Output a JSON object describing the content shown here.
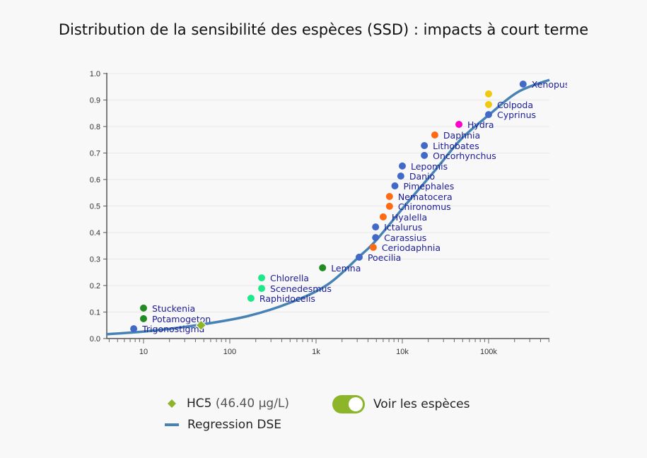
{
  "chart_data": {
    "type": "scatter",
    "title": "Distribution de la sensibilité des espèces (SSD) : impacts à court terme",
    "xscale": "log",
    "xlim": [
      3.75,
      507000
    ],
    "ylim": [
      0,
      1
    ],
    "xticks": [
      {
        "v": 10,
        "label": "10"
      },
      {
        "v": 100,
        "label": "100"
      },
      {
        "v": 1000,
        "label": "1k"
      },
      {
        "v": 10000,
        "label": "10k"
      },
      {
        "v": 100000,
        "label": "100k"
      }
    ],
    "yticks": [
      {
        "v": 0,
        "label": "0.0"
      },
      {
        "v": 0.1,
        "label": "0.1"
      },
      {
        "v": 0.2,
        "label": "0.2"
      },
      {
        "v": 0.3,
        "label": "0.3"
      },
      {
        "v": 0.4,
        "label": "0.4"
      },
      {
        "v": 0.5,
        "label": "0.5"
      },
      {
        "v": 0.6,
        "label": "0.6"
      },
      {
        "v": 0.7,
        "label": "0.7"
      },
      {
        "v": 0.8,
        "label": "0.8"
      },
      {
        "v": 0.9,
        "label": "0.9"
      },
      {
        "v": 1,
        "label": "1.0"
      }
    ],
    "grid": "horizontal",
    "points": [
      {
        "name": "Trigonostigma",
        "x": 7.7,
        "y": 0.037,
        "color": "#4169c8"
      },
      {
        "name": "Potamogeton",
        "x": 10,
        "y": 0.075,
        "color": "#228b22"
      },
      {
        "name": "Stuckenia",
        "x": 10,
        "y": 0.115,
        "color": "#228b22"
      },
      {
        "name": "Raphidocelis",
        "x": 176,
        "y": 0.152,
        "color": "#1de98b"
      },
      {
        "name": "Scenedesmus",
        "x": 234,
        "y": 0.189,
        "color": "#1de98b"
      },
      {
        "name": "Chlorella",
        "x": 234,
        "y": 0.229,
        "color": "#1de98b"
      },
      {
        "name": "Lemna",
        "x": 1190,
        "y": 0.267,
        "color": "#228b22"
      },
      {
        "name": "Poecilia",
        "x": 3160,
        "y": 0.307,
        "color": "#4169c8"
      },
      {
        "name": "Ceriodaphnia",
        "x": 4600,
        "y": 0.344,
        "color": "#ff6a13"
      },
      {
        "name": "Carassius",
        "x": 4900,
        "y": 0.381,
        "color": "#4169c8"
      },
      {
        "name": "Ictalurus",
        "x": 4900,
        "y": 0.421,
        "color": "#4169c8"
      },
      {
        "name": "Hyalella",
        "x": 6000,
        "y": 0.459,
        "color": "#ff6a13"
      },
      {
        "name": "Chironomus",
        "x": 7100,
        "y": 0.499,
        "color": "#ff6a13"
      },
      {
        "name": "Nematocera",
        "x": 7100,
        "y": 0.536,
        "color": "#ff6a13"
      },
      {
        "name": "Pimephales",
        "x": 8200,
        "y": 0.576,
        "color": "#4169c8"
      },
      {
        "name": "Danio",
        "x": 9600,
        "y": 0.613,
        "color": "#4169c8"
      },
      {
        "name": "Lepomis",
        "x": 10000,
        "y": 0.651,
        "color": "#4169c8"
      },
      {
        "name": "Oncorhynchus",
        "x": 18000,
        "y": 0.691,
        "color": "#4169c8"
      },
      {
        "name": "Lithobates",
        "x": 18000,
        "y": 0.728,
        "color": "#4169c8"
      },
      {
        "name": "Daphnia",
        "x": 23800,
        "y": 0.768,
        "color": "#ff6a13"
      },
      {
        "name": "Hydra",
        "x": 45300,
        "y": 0.808,
        "color": "#ff00cc"
      },
      {
        "name": "Cyprinus",
        "x": 100000,
        "y": 0.845,
        "color": "#4169c8"
      },
      {
        "name": "Colpoda",
        "x": 100000,
        "y": 0.883,
        "color": "#f2c80f"
      },
      {
        "name": "",
        "x": 100000,
        "y": 0.923,
        "color": "#f2c80f"
      },
      {
        "name": "Xenopus",
        "x": 251000,
        "y": 0.96,
        "color": "#4169c8"
      }
    ],
    "regression": {
      "name": "Regression DSE",
      "color": "#4682b4",
      "x": [
        3.68,
        12.3,
        47,
        163,
        507,
        1352,
        3162,
        4977,
        11400,
        24300,
        47900,
        102000,
        221000,
        507000
      ],
      "y": [
        0.016,
        0.029,
        0.053,
        0.085,
        0.136,
        0.203,
        0.309,
        0.371,
        0.512,
        0.637,
        0.752,
        0.845,
        0.931,
        0.976
      ]
    },
    "hc5": {
      "label": "HC5",
      "value_text": "(46.40 µg/L)",
      "x": 46.4,
      "y": 0.05,
      "color": "#8db52a"
    }
  },
  "legend": {
    "hc5_label": "HC5",
    "hc5_value": "(46.40 µg/L)",
    "regression_label": "Regression DSE"
  },
  "toggle": {
    "label": "Voir les espèces",
    "on": true,
    "color": "#8db52a"
  }
}
